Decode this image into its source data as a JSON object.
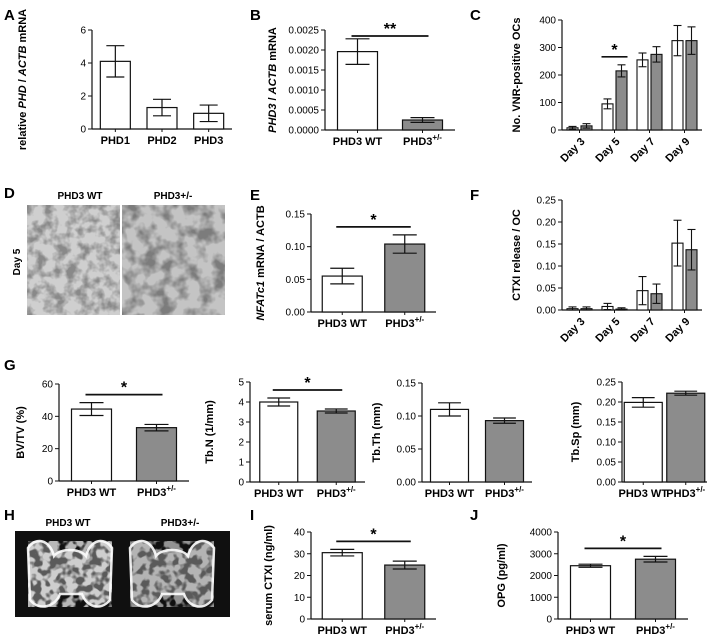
{
  "figure": {
    "panels": [
      {
        "id": "A",
        "letter": "A"
      },
      {
        "id": "B",
        "letter": "B"
      },
      {
        "id": "C",
        "letter": "C"
      },
      {
        "id": "D",
        "letter": "D",
        "image": {
          "titles": [
            "PHD3 WT",
            "PHD3+/-"
          ],
          "side_label": "Day 5"
        }
      },
      {
        "id": "E",
        "letter": "E"
      },
      {
        "id": "F",
        "letter": "F"
      },
      {
        "id": "G",
        "letter": "G"
      },
      {
        "id": "H",
        "letter": "H",
        "image": {
          "titles": [
            "PHD3 WT",
            "PHD3+/-"
          ]
        }
      },
      {
        "id": "I",
        "letter": "I"
      },
      {
        "id": "J",
        "letter": "J"
      }
    ]
  },
  "chart_data": [
    {
      "panel": "A",
      "type": "bar",
      "grouped": false,
      "ylabel": [
        "relative ",
        "PHD",
        " / ",
        "ACTB",
        " mRNA"
      ],
      "ylim": [
        0,
        6
      ],
      "yticks": [
        0,
        2,
        4,
        6
      ],
      "categories": [
        "PHD1",
        "PHD2",
        "PHD3"
      ],
      "values": [
        4.1,
        1.3,
        0.95
      ],
      "errors": [
        0.95,
        0.5,
        0.5
      ],
      "colors": [
        "#ffffff",
        "#ffffff",
        "#ffffff"
      ],
      "significance": []
    },
    {
      "panel": "B",
      "type": "bar",
      "grouped": false,
      "ylabel": [
        "PHD3",
        " / ",
        "ACTB",
        " mRNA"
      ],
      "ylim": [
        0,
        0.0025
      ],
      "yticks": [
        0,
        0.0005,
        0.001,
        0.0015,
        0.002,
        0.0025
      ],
      "ytick_labels": [
        "0.0000",
        "0.0005",
        "0.0010",
        "0.0015",
        "0.0020",
        "0.0025"
      ],
      "categories": [
        "PHD3 WT",
        "PHD3+/-"
      ],
      "values": [
        0.00196,
        0.00025
      ],
      "errors": [
        0.00032,
        6e-05
      ],
      "colors": [
        "#ffffff",
        "#8c8c8c"
      ],
      "significance": [
        {
          "from": 0,
          "to": 1,
          "label": "**"
        }
      ]
    },
    {
      "panel": "C",
      "type": "bar",
      "grouped": true,
      "ylabel": "No. VNR-positive OCs",
      "ylim": [
        0,
        400
      ],
      "yticks": [
        0,
        100,
        200,
        300,
        400
      ],
      "categories": [
        "Day 3",
        "Day 5",
        "Day 7",
        "Day 9"
      ],
      "series": [
        {
          "values": [
            8,
            95,
            255,
            325
          ],
          "errors": [
            5,
            18,
            25,
            55
          ],
          "color": "#ffffff"
        },
        {
          "values": [
            15,
            215,
            275,
            325
          ],
          "errors": [
            8,
            22,
            28,
            50
          ],
          "color": "#8c8c8c"
        }
      ],
      "significance": [
        {
          "category": 1,
          "label": "*"
        }
      ]
    },
    {
      "panel": "E",
      "type": "bar",
      "grouped": false,
      "ylabel": [
        "NFATc1",
        " mRNA / ACTB"
      ],
      "ylim": [
        0,
        0.15
      ],
      "yticks": [
        0,
        0.05,
        0.1,
        0.15
      ],
      "ytick_labels": [
        "0.00",
        "0.05",
        "0.10",
        "0.15"
      ],
      "categories": [
        "PHD3 WT",
        "PHD3+/-"
      ],
      "values": [
        0.055,
        0.104
      ],
      "errors": [
        0.012,
        0.014
      ],
      "colors": [
        "#ffffff",
        "#8c8c8c"
      ],
      "significance": [
        {
          "from": 0,
          "to": 1,
          "label": "*"
        }
      ]
    },
    {
      "panel": "F",
      "type": "bar",
      "grouped": true,
      "ylabel": "CTXI release / OC",
      "ylim": [
        0,
        0.25
      ],
      "yticks": [
        0,
        0.05,
        0.1,
        0.15,
        0.2,
        0.25
      ],
      "ytick_labels": [
        "0.00",
        "0.05",
        "0.10",
        "0.15",
        "0.20",
        "0.25"
      ],
      "categories": [
        "Day 3",
        "Day 5",
        "Day 7",
        "Day 9"
      ],
      "series": [
        {
          "values": [
            0.003,
            0.008,
            0.044,
            0.152
          ],
          "errors": [
            0.004,
            0.007,
            0.032,
            0.052
          ],
          "color": "#ffffff"
        },
        {
          "values": [
            0.003,
            0.002,
            0.037,
            0.137
          ],
          "errors": [
            0.004,
            0.003,
            0.022,
            0.046
          ],
          "color": "#8c8c8c"
        }
      ],
      "significance": []
    },
    {
      "panel": "G1",
      "type": "bar",
      "grouped": false,
      "ylabel": "BV/TV (%)",
      "ylim": [
        0,
        60
      ],
      "yticks": [
        0,
        20,
        40,
        60
      ],
      "categories": [
        "PHD3 WT",
        "PHD3+/-"
      ],
      "values": [
        44.5,
        33
      ],
      "errors": [
        4,
        2
      ],
      "colors": [
        "#ffffff",
        "#8c8c8c"
      ],
      "significance": [
        {
          "from": 0,
          "to": 1,
          "label": "*"
        }
      ]
    },
    {
      "panel": "G2",
      "type": "bar",
      "grouped": false,
      "ylabel": "Tb.N (1/mm)",
      "ylim": [
        0,
        5
      ],
      "yticks": [
        0,
        1,
        2,
        3,
        4,
        5
      ],
      "categories": [
        "PHD3 WT",
        "PHD3+/-"
      ],
      "values": [
        4.0,
        3.55
      ],
      "errors": [
        0.2,
        0.1
      ],
      "colors": [
        "#ffffff",
        "#8c8c8c"
      ],
      "significance": [
        {
          "from": 0,
          "to": 1,
          "label": "*"
        }
      ]
    },
    {
      "panel": "G3",
      "type": "bar",
      "grouped": false,
      "ylabel": "Tb.Th (mm)",
      "ylim": [
        0,
        0.15
      ],
      "yticks": [
        0,
        0.05,
        0.1,
        0.15
      ],
      "ytick_labels": [
        "0.00",
        "0.05",
        "0.10",
        "0.15"
      ],
      "categories": [
        "PHD3 WT",
        "PHD3+/-"
      ],
      "values": [
        0.11,
        0.093
      ],
      "errors": [
        0.01,
        0.004
      ],
      "colors": [
        "#ffffff",
        "#8c8c8c"
      ],
      "significance": []
    },
    {
      "panel": "G4",
      "type": "bar",
      "grouped": false,
      "ylabel": "Tb.Sp (mm)",
      "ylim": [
        0,
        0.25
      ],
      "yticks": [
        0,
        0.05,
        0.1,
        0.15,
        0.2,
        0.25
      ],
      "ytick_labels": [
        "0.00",
        "0.05",
        "0.10",
        "0.15",
        "0.20",
        "0.25"
      ],
      "categories": [
        "PHD3 WT",
        "PHD3+/-"
      ],
      "values": [
        0.199,
        0.222
      ],
      "errors": [
        0.012,
        0.005
      ],
      "colors": [
        "#ffffff",
        "#8c8c8c"
      ],
      "significance": []
    },
    {
      "panel": "I",
      "type": "bar",
      "grouped": false,
      "ylabel": "serum CTXI (ng/ml)",
      "ylim": [
        0,
        40
      ],
      "yticks": [
        0,
        10,
        20,
        30,
        40
      ],
      "categories": [
        "PHD3 WT",
        "PHD3+/-"
      ],
      "values": [
        30.5,
        24.8
      ],
      "errors": [
        1.5,
        1.8
      ],
      "colors": [
        "#ffffff",
        "#8c8c8c"
      ],
      "significance": [
        {
          "from": 0,
          "to": 1,
          "label": "*"
        }
      ]
    },
    {
      "panel": "J",
      "type": "bar",
      "grouped": false,
      "ylabel": "OPG (pg/ml)",
      "ylim": [
        0,
        4000
      ],
      "yticks": [
        0,
        1000,
        2000,
        3000,
        4000
      ],
      "categories": [
        "PHD3 WT",
        "PHD3+/-"
      ],
      "values": [
        2450,
        2750
      ],
      "errors": [
        70,
        130
      ],
      "colors": [
        "#ffffff",
        "#8c8c8c"
      ],
      "significance": [
        {
          "from": 0,
          "to": 1,
          "label": "*"
        }
      ]
    }
  ]
}
